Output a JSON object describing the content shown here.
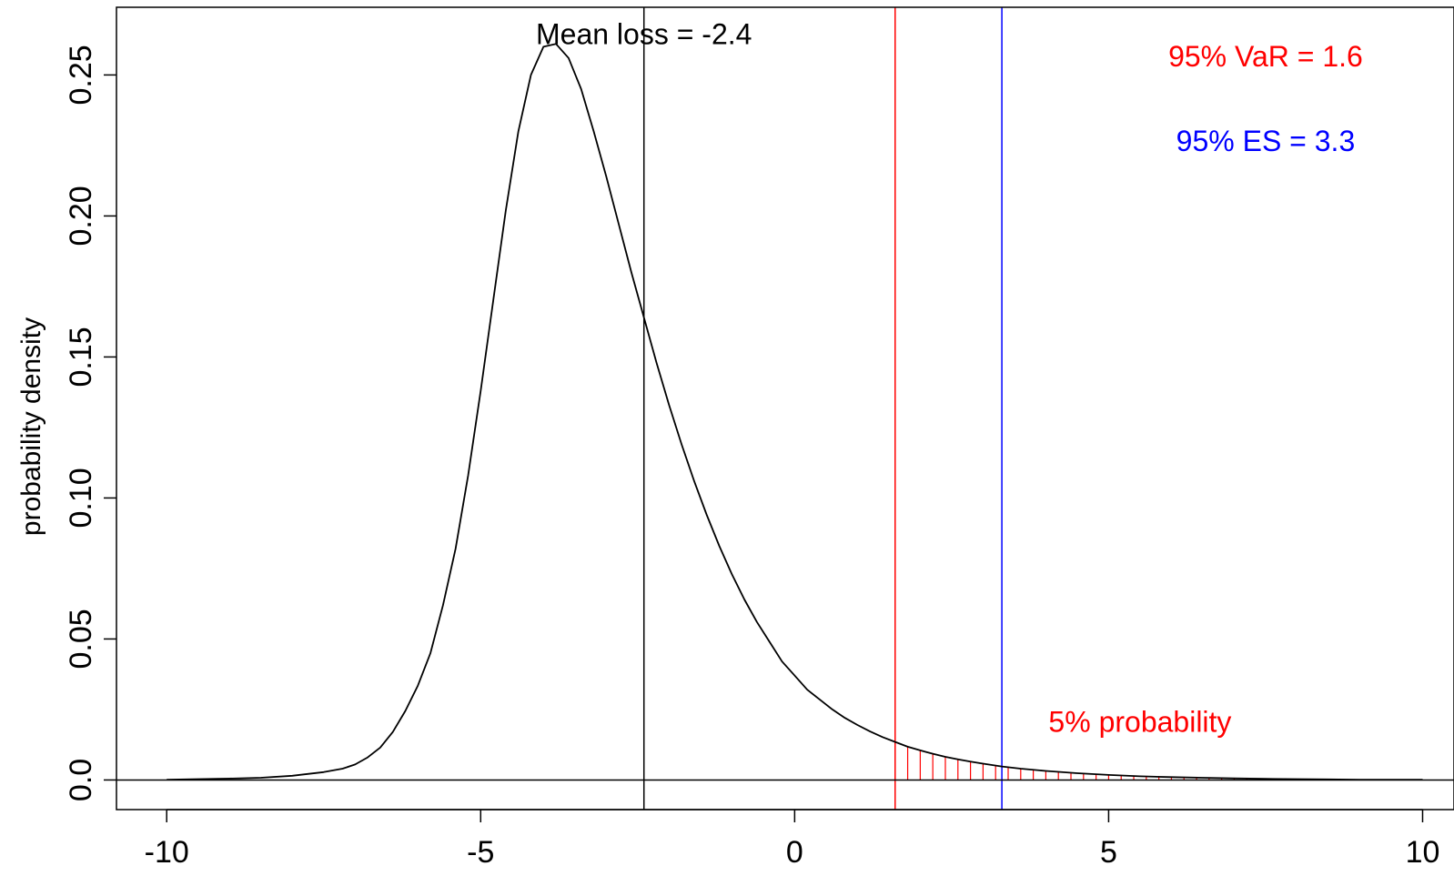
{
  "chart_data": {
    "type": "line",
    "title": "",
    "xlabel": "",
    "ylabel": "probability density",
    "xlim": [
      -10.8,
      10.5
    ],
    "ylim": [
      -0.0105,
      0.274
    ],
    "x_ticks": [
      "-10",
      "-5",
      "0",
      "5",
      "10"
    ],
    "x_tick_values": [
      -10,
      -5,
      0,
      5,
      10
    ],
    "y_ticks": [
      "0.0",
      "0.05",
      "0.10",
      "0.15",
      "0.20",
      "0.25"
    ],
    "y_tick_values": [
      0,
      0.05,
      0.1,
      0.15,
      0.2,
      0.25
    ],
    "grid": false,
    "series": [
      {
        "x": [
          -10,
          -9.5,
          -9,
          -8.5,
          -8,
          -7.8,
          -7.5,
          -7.2,
          -7,
          -6.8,
          -6.6,
          -6.4,
          -6.2,
          -6,
          -5.8,
          -5.6,
          -5.4,
          -5.2,
          -5,
          -4.8,
          -4.6,
          -4.4,
          -4.2,
          -4,
          -3.8,
          -3.6,
          -3.4,
          -3.2,
          -3,
          -2.8,
          -2.6,
          -2.4,
          -2.2,
          -2,
          -1.8,
          -1.6,
          -1.4,
          -1.2,
          -1,
          -0.8,
          -0.6,
          -0.4,
          -0.2,
          0,
          0.2,
          0.4,
          0.6,
          0.8,
          1,
          1.2,
          1.4,
          1.6,
          1.8,
          2,
          2.2,
          2.4,
          2.6,
          2.8,
          3,
          3.3,
          3.6,
          4,
          4.5,
          5,
          5.5,
          6,
          6.5,
          7,
          7.5,
          8,
          8.5,
          9,
          9.5,
          10
        ],
        "y": [
          0.0001,
          0.0003,
          0.0005,
          0.0008,
          0.0015,
          0.002,
          0.0028,
          0.004,
          0.0055,
          0.008,
          0.0115,
          0.017,
          0.0245,
          0.0335,
          0.045,
          0.062,
          0.082,
          0.108,
          0.138,
          0.17,
          0.202,
          0.23,
          0.25,
          0.26,
          0.261,
          0.256,
          0.245,
          0.23,
          0.214,
          0.197,
          0.18,
          0.164,
          0.148,
          0.133,
          0.119,
          0.106,
          0.094,
          0.083,
          0.073,
          0.064,
          0.056,
          0.049,
          0.042,
          0.037,
          0.032,
          0.0285,
          0.025,
          0.022,
          0.0195,
          0.0172,
          0.0152,
          0.0135,
          0.0118,
          0.0105,
          0.0093,
          0.0082,
          0.0073,
          0.0065,
          0.0058,
          0.0048,
          0.004,
          0.0032,
          0.0024,
          0.0018,
          0.0013,
          0.001,
          0.0008,
          0.0006,
          0.0004,
          0.0003,
          0.0002,
          0.0001,
          0.0001,
          0.0001
        ]
      }
    ],
    "vlines": [
      {
        "x": -2.4,
        "color": "#000000"
      },
      {
        "x": 1.6,
        "color": "#ff0000"
      },
      {
        "x": 3.3,
        "color": "#0000ff"
      }
    ],
    "hline": {
      "y": 0,
      "color": "#000000"
    },
    "tail_shading": {
      "from": 1.6,
      "to": 10,
      "step": 0.2,
      "color": "#ff0000"
    },
    "annotations": [
      {
        "text": "Mean loss = -2.4",
        "x": -2.4,
        "y": 0.261,
        "color": "#000000"
      },
      {
        "text": "95% VaR = 1.6",
        "x": 7.5,
        "y": 0.253,
        "color": "#ff0000"
      },
      {
        "text": "95% ES = 3.3",
        "x": 7.5,
        "y": 0.223,
        "color": "#0000ff"
      },
      {
        "text": "5% probability",
        "x": 5.5,
        "y": 0.017,
        "color": "#ff0000"
      }
    ]
  }
}
